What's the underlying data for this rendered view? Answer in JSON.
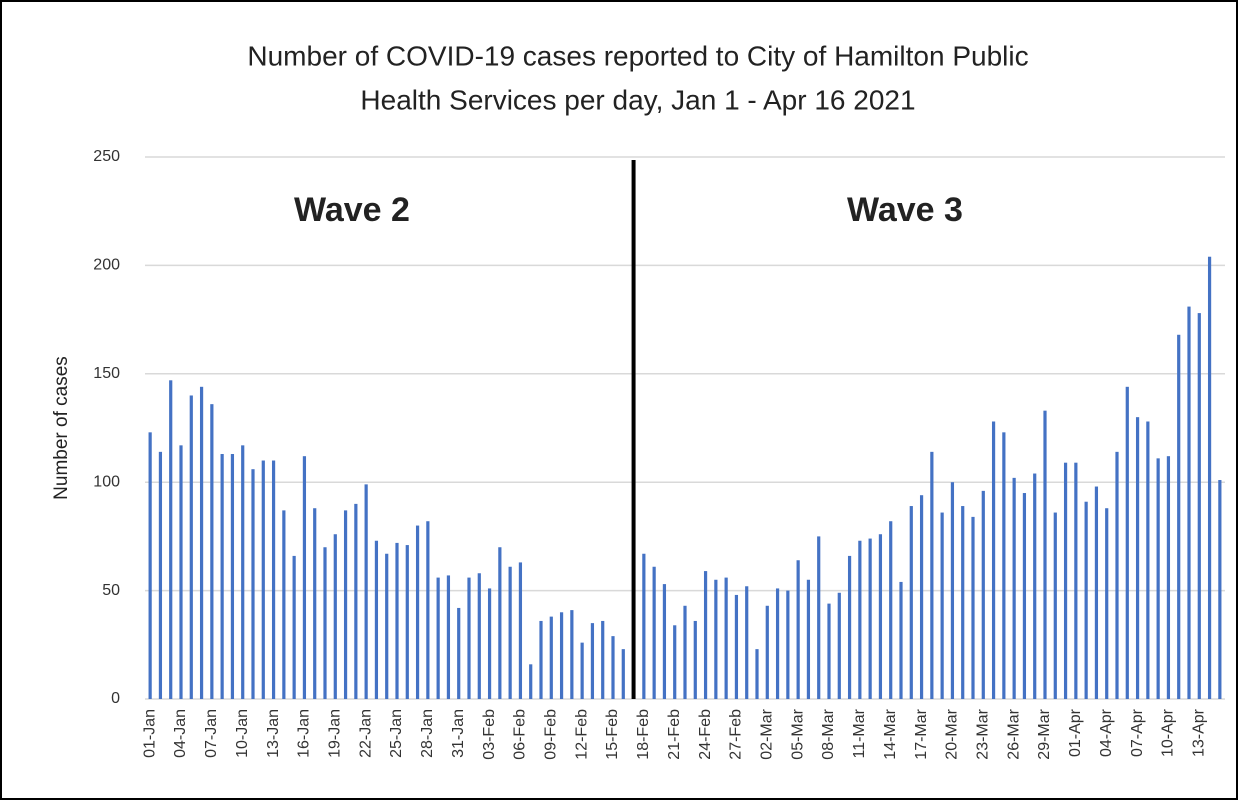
{
  "chart_data": {
    "type": "bar",
    "title": [
      "Number of COVID-19 cases reported to City of Hamilton Public",
      "Health Services per day, Jan 1 - Apr 16 2021"
    ],
    "ylabel": "Number of cases",
    "annotations": [
      "Wave 2",
      "Wave 3"
    ],
    "color": "#4472c4",
    "grid": true,
    "ylim": [
      0,
      250
    ],
    "yticks": [
      0,
      50,
      100,
      150,
      200,
      250
    ],
    "categories": [
      "01-Jan",
      null,
      null,
      "04-Jan",
      null,
      null,
      "07-Jan",
      null,
      null,
      "10-Jan",
      null,
      null,
      "13-Jan",
      null,
      null,
      "16-Jan",
      null,
      null,
      "19-Jan",
      null,
      null,
      "22-Jan",
      null,
      null,
      "25-Jan",
      null,
      null,
      "28-Jan",
      null,
      null,
      "31-Jan",
      null,
      null,
      "03-Feb",
      null,
      null,
      "06-Feb",
      null,
      null,
      "09-Feb",
      null,
      null,
      "12-Feb",
      null,
      null,
      "15-Feb",
      null,
      null,
      "18-Feb",
      null,
      null,
      "21-Feb",
      null,
      null,
      "24-Feb",
      null,
      null,
      "27-Feb",
      null,
      null,
      "02-Mar",
      null,
      null,
      "05-Mar",
      null,
      null,
      "08-Mar",
      null,
      null,
      "11-Mar",
      null,
      null,
      "14-Mar",
      null,
      null,
      "17-Mar",
      null,
      null,
      "20-Mar",
      null,
      null,
      "23-Mar",
      null,
      null,
      "26-Mar",
      null,
      null,
      "29-Mar",
      null,
      null,
      "01-Apr",
      null,
      null,
      "04-Apr",
      null,
      null,
      "07-Apr",
      null,
      null,
      "10-Apr",
      null,
      null,
      "13-Apr",
      null,
      null
    ],
    "values": [
      123,
      114,
      147,
      117,
      140,
      144,
      136,
      113,
      113,
      117,
      106,
      110,
      110,
      87,
      66,
      112,
      88,
      70,
      76,
      87,
      90,
      99,
      73,
      67,
      72,
      71,
      80,
      82,
      56,
      57,
      42,
      56,
      58,
      51,
      70,
      61,
      63,
      16,
      36,
      38,
      40,
      41,
      26,
      35,
      36,
      29,
      23,
      null,
      67,
      61,
      53,
      34,
      43,
      36,
      59,
      55,
      56,
      48,
      52,
      23,
      43,
      51,
      50,
      64,
      55,
      75,
      44,
      49,
      66,
      73,
      74,
      76,
      82,
      54,
      89,
      94,
      114,
      86,
      100,
      89,
      84,
      96,
      128,
      123,
      102,
      95,
      104,
      133,
      86,
      109,
      109,
      91,
      98,
      88,
      114,
      144,
      130,
      128,
      111,
      112,
      168,
      181,
      178,
      204,
      101
    ]
  }
}
